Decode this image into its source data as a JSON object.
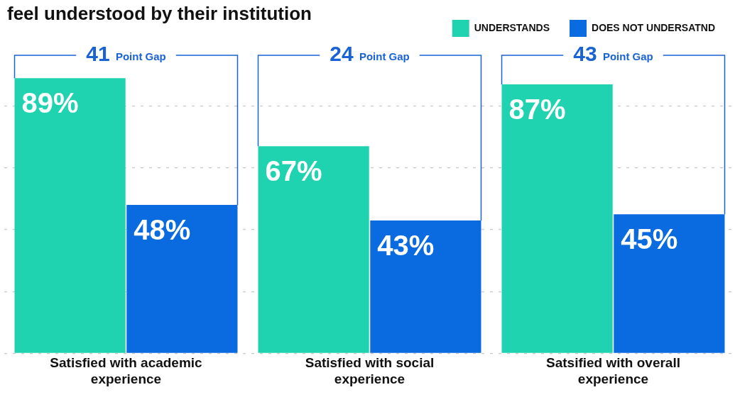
{
  "chart_data": {
    "type": "bar",
    "title": "feel understood by their institution",
    "categories": [
      "Satisfied with academic experience",
      "Satisfied with social experience",
      "Satsified with overall experience"
    ],
    "series": [
      {
        "name": "UNDERSTANDS",
        "color": "#1fd3b0",
        "values": [
          89,
          67,
          87
        ],
        "value_labels": [
          "89%",
          "67%",
          "87%"
        ]
      },
      {
        "name": "DOES NOT UNDERSATND",
        "color": "#0a6ae0",
        "values": [
          48,
          43,
          45
        ],
        "value_labels": [
          "48%",
          "43%",
          "45%"
        ]
      }
    ],
    "yticks": [
      {
        "value": 0,
        "label": null
      },
      {
        "value": 20,
        "label": null
      },
      {
        "value": 40,
        "label": null
      },
      {
        "value": 60,
        "label": null
      },
      {
        "value": 80,
        "label": null
      }
    ],
    "grid": "y",
    "legend": "top right",
    "tick_labels": "x",
    "annotations": [
      "41 Point Gap",
      "24 Point Gap",
      "43 Point Gap"
    ]
  }
}
